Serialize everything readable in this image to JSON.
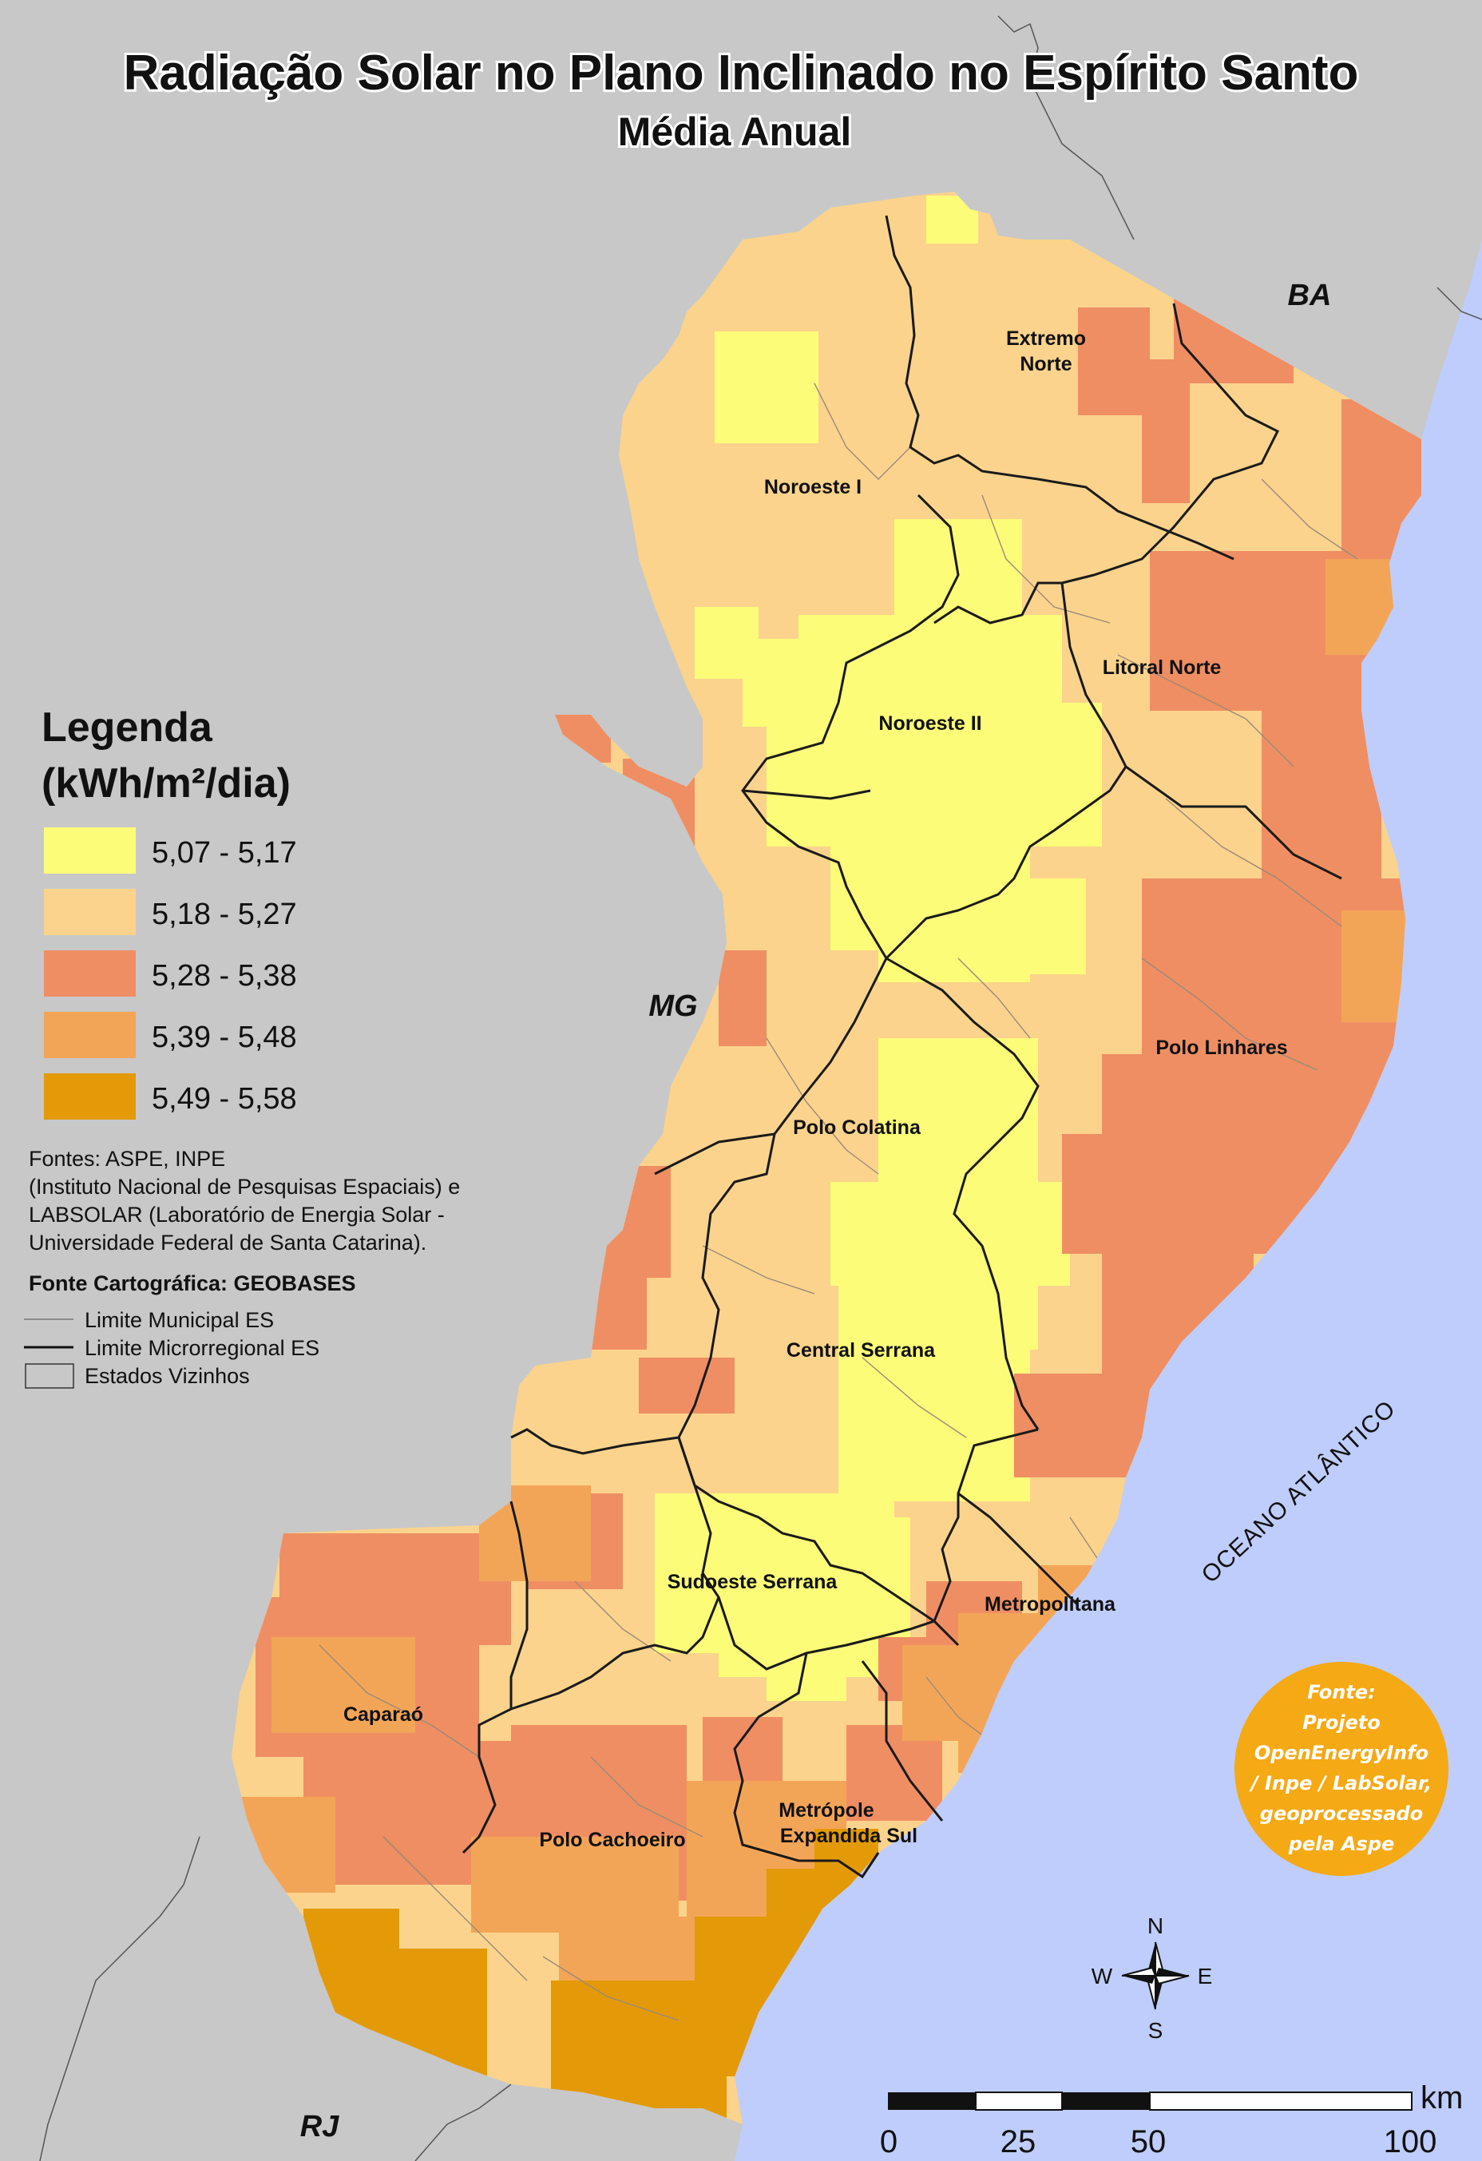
{
  "title": {
    "main": "Radiação Solar no Plano Inclinado no Espírito Santo",
    "subtitle": "Média Anual"
  },
  "colors": {
    "background_land": "#c8c8c8",
    "ocean": "#bfcdfc",
    "class_1": "#fcfc79",
    "class_2": "#fbd38c",
    "class_3": "#ef8e63",
    "class_4": "#f3a557",
    "class_5": "#e39a06",
    "source_badge": "#f5a915"
  },
  "regions": [
    "Extremo Norte",
    "Noroeste I",
    "Litoral Norte",
    "Noroeste II",
    "Polo Linhares",
    "Polo Colatina",
    "Central Serrana",
    "Sudoeste Serrana",
    "Metropolitana",
    "Caparaó",
    "Polo Cachoeiro",
    "Metrópole Expandida Sul"
  ],
  "neighbor_states": {
    "ba": "BA",
    "mg": "MG",
    "rj": "RJ"
  },
  "ocean_label": "OCEANO ATLÂNTICO",
  "legend": {
    "title_line1": "Legenda",
    "title_line2": "(kWh/m²/dia)",
    "classes": [
      {
        "label": "5,07 - 5,17",
        "color": "#fcfc79"
      },
      {
        "label": "5,18 - 5,27",
        "color": "#fbd38c"
      },
      {
        "label": "5,28 - 5,38",
        "color": "#ef8e63"
      },
      {
        "label": "5,39 - 5,48",
        "color": "#f3a557"
      },
      {
        "label": "5,49 - 5,58",
        "color": "#e39a06"
      }
    ],
    "sources": [
      "Fontes: ASPE, INPE",
      "(Instituto Nacional de Pesquisas Espaciais) e",
      "LABSOLAR (Laboratório de Energia Solar -",
      "Universidade Federal de Santa Catarina)."
    ],
    "cartographic_source": "Fonte Cartográfica: GEOBASES",
    "line_items": {
      "municipal": "Limite Municipal ES",
      "microregional": "Limite Microrregional ES",
      "neighbors": "Estados Vizinhos"
    }
  },
  "source_badge": {
    "lines": [
      "Fonte:",
      "Projeto",
      "OpenEnergyInfo",
      "/ Inpe / LabSolar,",
      "geoprocessado",
      "pela Aspe"
    ]
  },
  "compass": {
    "n": "N",
    "s": "S",
    "e": "E",
    "w": "W"
  },
  "scale_bar": {
    "unit": "km",
    "ticks": [
      "0",
      "25",
      "50",
      "100"
    ]
  }
}
